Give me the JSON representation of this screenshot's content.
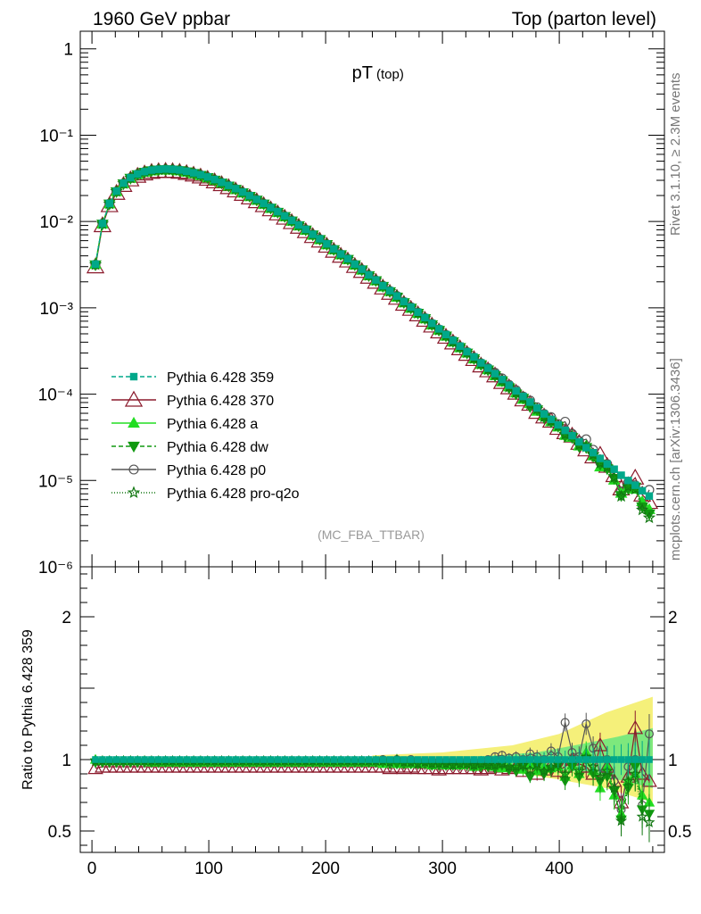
{
  "header": {
    "left": "1960 GeV ppbar",
    "right": "Top (parton level)"
  },
  "side_labels": {
    "rivet": "Rivet 3.1.10, ≥ 2.3M events",
    "mcplots": "mcplots.cern.ch [arXiv:1306.3436]"
  },
  "colors": {
    "p359": "#00a88a",
    "p370": "#8b1a2c",
    "pa": "#22dd22",
    "pdw": "#119911",
    "pp0": "#555555",
    "pq2o": "#117711",
    "band_yellow": "#f5f07a",
    "band_green": "#7de87d"
  },
  "chart_data": [
    {
      "type": "line",
      "title": "pT",
      "title_sub": "(top)",
      "watermark": "(MC_FBA_TTBAR)",
      "xlabel": "",
      "ylabel": "",
      "xlim": [
        -10,
        490
      ],
      "ylim": [
        1e-06,
        1.6
      ],
      "yscale": "log",
      "ytick_labels": [
        "1",
        "10⁻¹",
        "10⁻²",
        "10⁻³",
        "10⁻⁴",
        "10⁻⁵",
        "10⁻⁶"
      ],
      "legend_position": "bottom-left",
      "x": [
        3,
        9,
        15,
        21,
        27,
        33,
        39,
        45,
        51,
        57,
        63,
        69,
        75,
        81,
        87,
        93,
        99,
        105,
        111,
        117,
        123,
        129,
        135,
        141,
        147,
        153,
        159,
        165,
        171,
        177,
        183,
        189,
        195,
        201,
        207,
        213,
        219,
        225,
        231,
        237,
        243,
        249,
        255,
        261,
        267,
        273,
        279,
        285,
        291,
        297,
        303,
        309,
        315,
        321,
        327,
        333,
        339,
        345,
        351,
        357,
        363,
        369,
        375,
        381,
        387,
        393,
        399,
        405,
        411,
        417,
        423,
        429,
        435,
        441,
        447,
        453,
        459,
        465,
        471,
        477
      ],
      "values": [
        0.0032,
        0.0095,
        0.0162,
        0.0225,
        0.0278,
        0.0322,
        0.0355,
        0.0378,
        0.0394,
        0.0402,
        0.0405,
        0.0402,
        0.0395,
        0.0382,
        0.0366,
        0.0348,
        0.0328,
        0.0306,
        0.0284,
        0.0262,
        0.024,
        0.0219,
        0.0199,
        0.018,
        0.0162,
        0.0145,
        0.013,
        0.0116,
        0.0103,
        0.0091,
        0.0081,
        0.0071,
        0.0063,
        0.0055,
        0.0048,
        0.0042,
        0.0037,
        0.0032,
        0.0028,
        0.0024,
        0.0021,
        0.0018,
        0.00158,
        0.00137,
        0.00118,
        0.00102,
        0.00089,
        0.00077,
        0.00066,
        0.00057,
        0.00049,
        0.00042,
        0.00036,
        0.00031,
        0.00027,
        0.00023,
        0.0002,
        0.000173,
        0.000148,
        0.000127,
        0.000109,
        9.4e-05,
        8.1e-05,
        6.9e-05,
        5.9e-05,
        5.1e-05,
        4.4e-05,
        3.8e-05,
        3.3e-05,
        2.8e-05,
        2.4e-05,
        2.1e-05,
        1.8e-05,
        1.55e-05,
        1.35e-05,
        1.15e-05,
        1e-05,
        8.8e-06,
        7.6e-06,
        6.6e-06
      ],
      "series": [
        {
          "name": "Pythia 6.428 359",
          "key": "p359",
          "marker": "square",
          "dash": "5,3",
          "open": false,
          "ratio": [
            1.0,
            1.0,
            1.0,
            1.0,
            1.0,
            1.0,
            1.0,
            1.0,
            1.0,
            1.0,
            1.0,
            1.0,
            1.0,
            1.0,
            1.0,
            1.0,
            1.0,
            1.0,
            1.0,
            1.0,
            1.0,
            1.0,
            1.0,
            1.0,
            1.0,
            1.0,
            1.0,
            1.0,
            1.0,
            1.0,
            1.0,
            1.0,
            1.0,
            1.0,
            1.0,
            1.0,
            1.0,
            1.0,
            1.0,
            1.0,
            1.0,
            1.0,
            1.0,
            1.0,
            1.0,
            1.0,
            1.0,
            1.0,
            1.0,
            1.0,
            1.0,
            1.0,
            1.0,
            1.0,
            1.0,
            1.0,
            1.0,
            1.0,
            1.0,
            1.0,
            1.0,
            1.0,
            1.0,
            1.0,
            1.0,
            1.0,
            1.0,
            1.0,
            1.0,
            1.0,
            1.0,
            1.0,
            1.0,
            1.0,
            1.0,
            1.0,
            1.0,
            1.0,
            1.0,
            1.0
          ]
        },
        {
          "name": "Pythia 6.428 370",
          "key": "p370",
          "marker": "triangle",
          "dash": "",
          "open": true,
          "ratio": [
            0.94,
            0.95,
            0.95,
            0.95,
            0.95,
            0.95,
            0.95,
            0.95,
            0.95,
            0.95,
            0.95,
            0.95,
            0.95,
            0.95,
            0.95,
            0.95,
            0.95,
            0.95,
            0.95,
            0.95,
            0.95,
            0.95,
            0.95,
            0.95,
            0.95,
            0.95,
            0.95,
            0.95,
            0.95,
            0.95,
            0.95,
            0.95,
            0.95,
            0.95,
            0.95,
            0.95,
            0.95,
            0.95,
            0.95,
            0.95,
            0.95,
            0.95,
            0.94,
            0.95,
            0.94,
            0.95,
            0.94,
            0.94,
            0.94,
            0.93,
            0.94,
            0.94,
            0.94,
            0.94,
            0.94,
            0.93,
            0.94,
            0.95,
            0.93,
            0.94,
            0.95,
            0.92,
            0.95,
            0.9,
            0.93,
            0.96,
            0.92,
            0.95,
            1.0,
            0.97,
            0.95,
            0.9,
            1.1,
            0.95,
            0.85,
            0.7,
            0.88,
            1.22,
            0.9,
            0.85
          ]
        },
        {
          "name": "Pythia 6.428 a",
          "key": "pa",
          "marker": "triangle",
          "dash": "",
          "open": false,
          "ratio": [
            1.0,
            0.99,
            0.99,
            0.99,
            0.99,
            0.99,
            0.99,
            0.99,
            0.98,
            0.98,
            0.98,
            0.98,
            0.98,
            0.98,
            0.98,
            0.98,
            0.98,
            0.98,
            0.98,
            0.98,
            0.98,
            0.98,
            0.98,
            0.98,
            0.98,
            0.98,
            0.98,
            0.98,
            0.98,
            0.98,
            0.98,
            0.98,
            0.98,
            0.98,
            0.98,
            0.98,
            0.98,
            0.98,
            0.98,
            0.98,
            0.98,
            0.97,
            0.98,
            0.97,
            0.97,
            0.97,
            0.97,
            0.97,
            0.96,
            0.97,
            0.96,
            0.96,
            0.96,
            0.97,
            0.95,
            0.96,
            0.96,
            0.95,
            0.94,
            0.96,
            0.95,
            0.93,
            0.96,
            0.92,
            0.95,
            0.94,
            0.95,
            0.88,
            0.96,
            0.9,
            1.05,
            0.92,
            0.8,
            0.95,
            0.75,
            0.62,
            0.85,
            0.9,
            0.75,
            0.7
          ]
        },
        {
          "name": "Pythia 6.428 dw",
          "key": "pdw",
          "marker": "invtriangle",
          "dash": "5,3",
          "open": false,
          "ratio": [
            0.98,
            0.98,
            0.98,
            0.98,
            0.98,
            0.98,
            0.98,
            0.98,
            0.98,
            0.98,
            0.98,
            0.98,
            0.98,
            0.98,
            0.98,
            0.98,
            0.98,
            0.98,
            0.98,
            0.98,
            0.98,
            0.98,
            0.98,
            0.98,
            0.98,
            0.98,
            0.98,
            0.98,
            0.98,
            0.98,
            0.98,
            0.98,
            0.98,
            0.98,
            0.98,
            0.98,
            0.98,
            0.98,
            0.98,
            0.98,
            0.98,
            0.98,
            0.97,
            0.97,
            0.97,
            0.97,
            0.97,
            0.97,
            0.96,
            0.96,
            0.96,
            0.96,
            0.96,
            0.96,
            0.95,
            0.95,
            0.95,
            0.94,
            0.96,
            0.93,
            0.92,
            0.95,
            0.88,
            0.95,
            0.9,
            0.93,
            0.96,
            0.85,
            0.95,
            0.88,
            1.0,
            0.9,
            0.85,
            0.88,
            0.78,
            0.58,
            0.8,
            0.95,
            0.65,
            0.62
          ]
        },
        {
          "name": "Pythia 6.428 p0",
          "key": "pp0",
          "marker": "circle",
          "dash": "",
          "open": true,
          "ratio": [
            0.99,
            0.99,
            0.99,
            0.99,
            0.99,
            0.99,
            0.99,
            0.99,
            0.99,
            0.99,
            0.99,
            0.99,
            0.99,
            0.99,
            0.99,
            0.99,
            0.99,
            0.99,
            0.99,
            0.99,
            0.99,
            0.99,
            0.99,
            0.99,
            0.99,
            0.99,
            0.99,
            0.99,
            0.99,
            0.99,
            0.99,
            0.99,
            0.99,
            0.99,
            0.99,
            0.99,
            0.99,
            0.99,
            0.99,
            0.99,
            0.99,
            1.0,
            0.99,
            1.0,
            0.99,
            1.0,
            0.99,
            0.99,
            0.99,
            0.98,
            0.99,
            0.99,
            0.98,
            0.99,
            0.98,
            0.99,
            1.0,
            1.02,
            1.03,
            1.01,
            1.02,
            1.0,
            1.04,
            1.02,
            1.0,
            1.06,
            1.02,
            1.26,
            1.05,
            1.02,
            1.25,
            1.08,
            0.9,
            1.0,
            0.85,
            0.65,
            0.95,
            1.0,
            0.68,
            1.18
          ]
        },
        {
          "name": "Pythia 6.428 pro-q2o",
          "key": "pq2o",
          "marker": "star",
          "dash": "1,2",
          "open": true,
          "ratio": [
            0.99,
            0.99,
            0.99,
            0.99,
            0.99,
            0.99,
            0.99,
            0.99,
            0.99,
            0.99,
            0.99,
            0.99,
            0.99,
            0.99,
            0.99,
            0.99,
            0.99,
            0.99,
            0.99,
            0.99,
            0.99,
            0.99,
            0.99,
            0.99,
            0.99,
            0.99,
            0.99,
            0.99,
            0.99,
            0.99,
            0.99,
            0.99,
            0.99,
            0.99,
            0.99,
            0.99,
            0.99,
            0.99,
            0.99,
            0.99,
            0.99,
            0.99,
            0.98,
            1.0,
            0.98,
            0.98,
            0.97,
            0.98,
            0.97,
            0.97,
            0.97,
            0.96,
            0.97,
            0.97,
            0.96,
            0.97,
            0.96,
            0.96,
            0.97,
            0.95,
            0.95,
            0.96,
            0.93,
            0.97,
            0.92,
            0.95,
            0.97,
            0.9,
            1.0,
            0.92,
            1.02,
            0.95,
            0.88,
            0.92,
            0.8,
            0.57,
            0.85,
            0.9,
            0.6,
            0.56
          ]
        }
      ]
    },
    {
      "type": "line",
      "title": "",
      "xlabel": "",
      "ylabel": "Ratio to Pythia 6.428 359",
      "xlim": [
        -10,
        490
      ],
      "ylim": [
        0.35,
        2.35
      ],
      "xticks": [
        0,
        100,
        200,
        300,
        400
      ],
      "yticks": [
        0.5,
        1,
        2
      ],
      "ytick_labels": [
        "0.5",
        "1",
        "2"
      ],
      "reference_line": 1.0,
      "band_outer": [
        {
          "x": 240,
          "lo": 0.97,
          "hi": 1.03
        },
        {
          "x": 300,
          "lo": 0.95,
          "hi": 1.05
        },
        {
          "x": 360,
          "lo": 0.91,
          "hi": 1.1
        },
        {
          "x": 400,
          "lo": 0.86,
          "hi": 1.18
        },
        {
          "x": 440,
          "lo": 0.8,
          "hi": 1.33
        },
        {
          "x": 480,
          "lo": 0.7,
          "hi": 1.44
        }
      ],
      "band_inner": [
        {
          "x": 330,
          "lo": 0.98,
          "hi": 1.02
        },
        {
          "x": 380,
          "lo": 0.95,
          "hi": 1.05
        },
        {
          "x": 420,
          "lo": 0.91,
          "hi": 1.11
        },
        {
          "x": 450,
          "lo": 0.86,
          "hi": 1.16
        },
        {
          "x": 480,
          "lo": 0.8,
          "hi": 1.22
        }
      ]
    }
  ]
}
